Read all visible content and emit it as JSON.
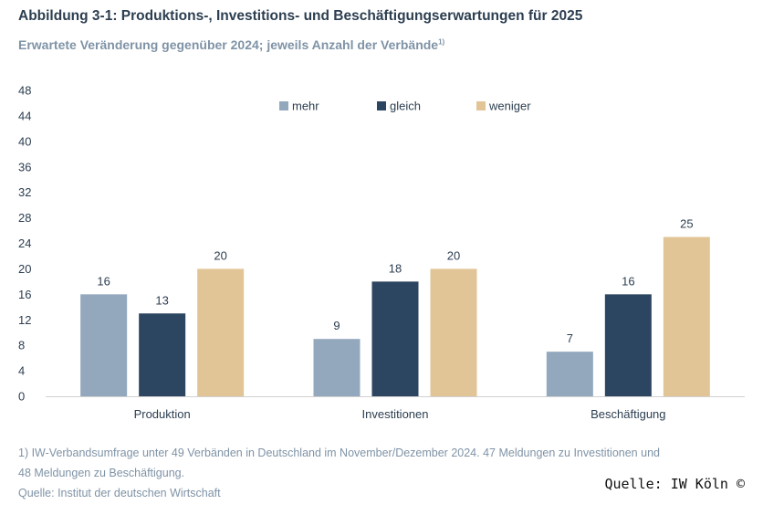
{
  "header": {
    "title": "Abbildung 3-1: Produktions-, Investitions- und Beschäftigungserwartungen für 2025",
    "subtitle": "Erwartete Veränderung gegenüber 2024; jeweils Anzahl der Verbände",
    "subtitle_note": "1)"
  },
  "footer": {
    "note_line1": "1) IW-Verbandsumfrage unter 49 Verbänden in Deutschland im November/Dezember 2024. 47 Meldungen zu Investitionen und",
    "note_line2": "48 Meldungen zu Beschäftigung.",
    "source": "Quelle: Institut der deutschen Wirtschaft",
    "watermark": "Quelle: IW Köln ©"
  },
  "colors": {
    "mehr": "#93a8bd",
    "gleich": "#2c4560",
    "weniger": "#e2c597",
    "axis_text": "#2c3e50"
  },
  "chart_data": {
    "type": "bar",
    "categories": [
      "Produktion",
      "Investitionen",
      "Beschäftigung"
    ],
    "series": [
      {
        "name": "mehr",
        "values": [
          16,
          9,
          7
        ]
      },
      {
        "name": "gleich",
        "values": [
          13,
          18,
          16
        ]
      },
      {
        "name": "weniger",
        "values": [
          20,
          20,
          25
        ]
      }
    ],
    "ylim": [
      0,
      48
    ],
    "yticks": [
      0,
      4,
      8,
      12,
      16,
      20,
      24,
      28,
      32,
      36,
      40,
      44,
      48
    ],
    "legend_position": "top-center",
    "grid": false,
    "data_labels": true
  }
}
